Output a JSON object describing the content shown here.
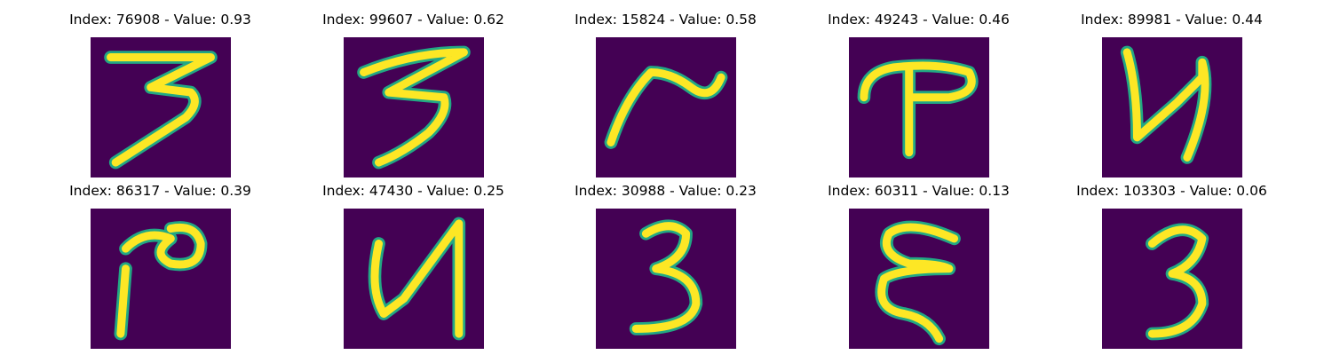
{
  "colors": {
    "background": "#440154",
    "edge": "#22a884",
    "stroke": "#fde725",
    "text": "#000000"
  },
  "panels": [
    {
      "index": "76908",
      "value": "0.93",
      "title": "Index: 76908 - Value: 0.93"
    },
    {
      "index": "99607",
      "value": "0.62",
      "title": "Index: 99607 - Value: 0.62"
    },
    {
      "index": "15824",
      "value": "0.58",
      "title": "Index: 15824 - Value: 0.58"
    },
    {
      "index": "49243",
      "value": "0.46",
      "title": "Index: 49243 - Value: 0.46"
    },
    {
      "index": "89981",
      "value": "0.44",
      "title": "Index: 89981 - Value: 0.44"
    },
    {
      "index": "86317",
      "value": "0.39",
      "title": "Index: 86317 - Value: 0.39"
    },
    {
      "index": "47430",
      "value": "0.25",
      "title": "Index: 47430 - Value: 0.25"
    },
    {
      "index": "30988",
      "value": "0.23",
      "title": "Index: 30988 - Value: 0.23"
    },
    {
      "index": "60311",
      "value": "0.13",
      "title": "Index: 60311 - Value: 0.13"
    },
    {
      "index": "103303",
      "value": "0.06",
      "title": "Index: 103303 - Value: 0.06"
    }
  ]
}
